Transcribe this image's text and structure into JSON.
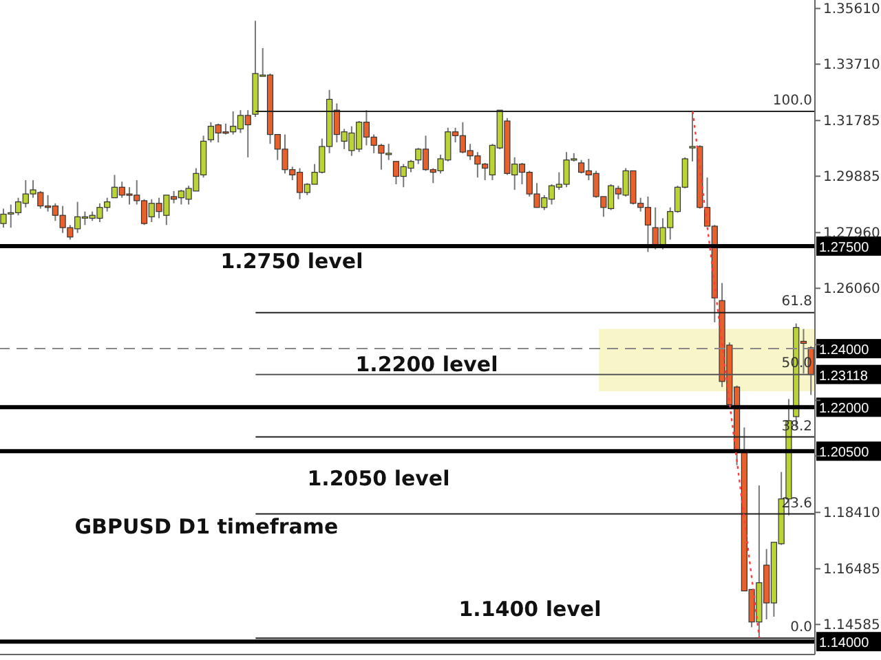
{
  "chart_data": {
    "type": "candlestick",
    "categories": [
      null,
      null,
      null,
      null,
      null,
      null,
      null,
      null,
      null,
      null,
      null,
      null,
      null,
      null,
      null,
      null,
      null,
      null,
      null,
      null,
      null,
      null,
      null,
      null,
      null,
      null,
      null,
      null,
      null,
      null,
      null,
      null,
      null,
      null,
      null,
      null,
      null,
      null,
      null,
      null,
      null,
      null,
      null,
      null,
      null,
      null,
      null,
      null,
      null,
      null,
      null,
      null,
      null,
      null,
      null,
      null,
      null,
      null,
      null,
      null,
      null,
      null,
      null,
      null,
      null,
      null,
      null,
      null,
      null,
      null,
      null,
      null,
      null,
      null,
      null,
      null,
      null,
      null,
      null,
      null,
      null,
      null,
      null,
      null,
      null,
      null,
      null,
      null,
      null,
      null,
      null,
      null,
      null,
      null,
      null,
      null,
      null,
      null,
      null,
      null,
      null,
      null,
      null,
      null,
      null,
      null,
      null,
      null,
      null,
      null
    ],
    "ohlc": [
      [
        1.2827,
        1.2878,
        1.2813,
        1.2859
      ],
      [
        1.2864,
        1.2892,
        1.2813,
        1.2864
      ],
      [
        1.2864,
        1.2915,
        1.2855,
        1.2901
      ],
      [
        1.2896,
        1.2975,
        1.2882,
        1.2928
      ],
      [
        1.2928,
        1.2975,
        1.2915,
        1.2942
      ],
      [
        1.2933,
        1.2938,
        1.2878,
        1.2887
      ],
      [
        1.2887,
        1.2924,
        1.2868,
        1.2882
      ],
      [
        1.2887,
        1.2896,
        1.2836,
        1.2855
      ],
      [
        1.2855,
        1.2887,
        1.2795,
        1.2813
      ],
      [
        1.2813,
        1.2822,
        1.2772,
        1.2781
      ],
      [
        1.2809,
        1.2901,
        1.2795,
        1.285
      ],
      [
        1.285,
        1.2868,
        1.2822,
        1.285
      ],
      [
        1.2845,
        1.2868,
        1.2836,
        1.2855
      ],
      [
        1.2845,
        1.2896,
        1.2832,
        1.2882
      ],
      [
        1.2882,
        1.2915,
        1.2868,
        1.2901
      ],
      [
        1.2915,
        1.2993,
        1.2915,
        1.2951
      ],
      [
        1.2951,
        1.297,
        1.2915,
        1.2924
      ],
      [
        1.2928,
        1.2951,
        1.2892,
        1.2924
      ],
      [
        1.2924,
        1.2975,
        1.2892,
        1.2905
      ],
      [
        1.2905,
        1.291,
        1.2822,
        1.2827
      ],
      [
        1.285,
        1.291,
        1.2832,
        1.2896
      ],
      [
        1.2896,
        1.2915,
        1.2845,
        1.2868
      ],
      [
        1.2855,
        1.2924,
        1.2822,
        1.2924
      ],
      [
        1.2919,
        1.2938,
        1.2896,
        1.291
      ],
      [
        1.2915,
        1.2942,
        1.2892,
        1.2938
      ],
      [
        1.291,
        1.2956,
        1.2892,
        1.2947
      ],
      [
        1.2938,
        1.3016,
        1.2938,
        1.2998
      ],
      [
        1.2993,
        1.3127,
        1.2984,
        1.3108
      ],
      [
        1.3113,
        1.3173,
        1.3104,
        1.3159
      ],
      [
        1.3164,
        1.3168,
        1.3104,
        1.3136
      ],
      [
        1.314,
        1.3168,
        1.3131,
        1.3136
      ],
      [
        1.314,
        1.321,
        1.3131,
        1.3159
      ],
      [
        1.315,
        1.3214,
        1.3136,
        1.3196
      ],
      [
        1.3196,
        1.3214,
        1.3053,
        1.3164
      ],
      [
        1.32,
        1.3519,
        1.3191,
        1.3339
      ],
      [
        1.3334,
        1.3426,
        1.333,
        1.3334
      ],
      [
        1.3334,
        1.3339,
        1.3099,
        1.3131
      ],
      [
        1.3131,
        1.3131,
        1.3044,
        1.3081
      ],
      [
        1.3081,
        1.3131,
        1.2998,
        1.3011
      ],
      [
        1.3011,
        1.3021,
        1.2975,
        1.2993
      ],
      [
        1.3002,
        1.3016,
        1.291,
        1.2933
      ],
      [
        1.2933,
        1.2965,
        1.2924,
        1.2961
      ],
      [
        1.2961,
        1.303,
        1.2961,
        1.3002
      ],
      [
        1.3002,
        1.3117,
        1.2998,
        1.309
      ],
      [
        1.309,
        1.3283,
        1.3067,
        1.3251
      ],
      [
        1.3214,
        1.3237,
        1.3104,
        1.3131
      ],
      [
        1.3108,
        1.315,
        1.3081,
        1.314
      ],
      [
        1.3076,
        1.3159,
        1.3058,
        1.3136
      ],
      [
        1.3081,
        1.3177,
        1.3071,
        1.3173
      ],
      [
        1.3173,
        1.3214,
        1.3094,
        1.3122
      ],
      [
        1.3122,
        1.3131,
        1.3067,
        1.3094
      ],
      [
        1.3094,
        1.3099,
        1.3011,
        1.3067
      ],
      [
        1.3067,
        1.3099,
        1.3044,
        1.3067
      ],
      [
        1.3039,
        1.3039,
        1.2961,
        1.2988
      ],
      [
        1.2988,
        1.303,
        1.2951,
        1.3021
      ],
      [
        1.3016,
        1.3044,
        1.3002,
        1.3039
      ],
      [
        1.3044,
        1.3085,
        1.303,
        1.3081
      ],
      [
        1.3081,
        1.3127,
        1.3007,
        1.3011
      ],
      [
        1.3011,
        1.3016,
        1.2965,
        1.3002
      ],
      [
        1.3007,
        1.3062,
        1.2998,
        1.3048
      ],
      [
        1.3044,
        1.3154,
        1.3039,
        1.314
      ],
      [
        1.314,
        1.3154,
        1.3104,
        1.3127
      ],
      [
        1.3127,
        1.3173,
        1.3067,
        1.3071
      ],
      [
        1.3076,
        1.3099,
        1.3044,
        1.3058
      ],
      [
        1.3058,
        1.3071,
        1.2984,
        1.303
      ],
      [
        1.303,
        1.3034,
        1.2975,
        1.3016
      ],
      [
        1.2993,
        1.3099,
        1.2975,
        1.3094
      ],
      [
        1.3085,
        1.3214,
        1.3081,
        1.3214
      ],
      [
        1.3177,
        1.3187,
        1.2993,
        1.2998
      ],
      [
        1.2993,
        1.3053,
        1.2942,
        1.303
      ],
      [
        1.303,
        1.3034,
        1.2961,
        1.3002
      ],
      [
        1.3002,
        1.3007,
        1.2919,
        1.2928
      ],
      [
        1.2928,
        1.2965,
        1.2882,
        1.2882
      ],
      [
        1.2882,
        1.2924,
        1.2873,
        1.2915
      ],
      [
        1.291,
        1.2961,
        1.2892,
        1.2956
      ],
      [
        1.2951,
        1.3002,
        1.2942,
        1.2961
      ],
      [
        1.2961,
        1.3071,
        1.2951,
        1.3044
      ],
      [
        1.3044,
        1.3067,
        1.3039,
        1.3048
      ],
      [
        1.3034,
        1.3044,
        1.2998,
        1.3002
      ],
      [
        1.3007,
        1.3048,
        1.2975,
        1.2993
      ],
      [
        1.2998,
        1.3007,
        1.2915,
        1.2919
      ],
      [
        1.2919,
        1.2919,
        1.285,
        1.2882
      ],
      [
        1.2878,
        1.2961,
        1.2873,
        1.2956
      ],
      [
        1.2947,
        1.2956,
        1.291,
        1.2928
      ],
      [
        1.2924,
        1.3016,
        1.2919,
        1.3007
      ],
      [
        1.3007,
        1.3007,
        1.2892,
        1.2896
      ],
      [
        1.2896,
        1.2915,
        1.2868,
        1.2882
      ],
      [
        1.2882,
        1.2919,
        1.273,
        1.2822
      ],
      [
        1.2813,
        1.2882,
        1.2739,
        1.2749
      ],
      [
        1.2749,
        1.2845,
        1.2739,
        1.2813
      ],
      [
        1.2813,
        1.2882,
        1.2772,
        1.2868
      ],
      [
        1.2868,
        1.2956,
        1.2864,
        1.2951
      ],
      [
        1.2951,
        1.3053,
        1.2947,
        1.3048
      ],
      [
        1.3085,
        1.321,
        1.3039,
        1.309
      ],
      [
        1.309,
        1.3094,
        1.2878,
        1.2882
      ],
      [
        1.2882,
        1.2984,
        1.2818,
        1.2818
      ],
      [
        1.2818,
        1.2822,
        1.249,
        1.2573
      ],
      [
        1.2564,
        1.2624,
        1.2269,
        1.2288
      ],
      [
        1.2412,
        1.2421,
        1.2209,
        1.2209
      ],
      [
        1.2269,
        1.2274,
        1.2002,
        1.2053
      ],
      [
        1.2053,
        1.2131,
        1.1573,
        1.1573
      ],
      [
        1.1578,
        1.1578,
        1.1449,
        1.1467
      ],
      [
        1.1467,
        1.1933,
        1.1412,
        1.1601
      ],
      [
        1.1661,
        1.1716,
        1.1476,
        1.1532
      ],
      [
        1.1532,
        1.1739,
        1.1485,
        1.1739
      ],
      [
        1.1734,
        1.1979,
        1.173,
        1.1887
      ],
      [
        1.1887,
        1.2228,
        1.1831,
        1.2154
      ],
      [
        1.2168,
        1.2486,
        1.2131,
        1.2472
      ],
      [
        1.2425,
        1.2467,
        1.2315,
        1.2418
      ],
      [
        1.2403,
        1.2408,
        1.2242,
        1.2312
      ]
    ],
    "colors": [
      "#bcd335",
      "#bcd335",
      "#bcd335",
      "#bcd335",
      "#bcd335",
      "#e8602c",
      "#e8602c",
      "#e8602c",
      "#e8602c",
      "#e8602c",
      "#bcd335",
      "#bcd335",
      "#bcd335",
      "#bcd335",
      "#bcd335",
      "#bcd335",
      "#e8602c",
      "#e8602c",
      "#e8602c",
      "#e8602c",
      "#bcd335",
      "#e8602c",
      "#bcd335",
      "#e8602c",
      "#bcd335",
      "#bcd335",
      "#bcd335",
      "#bcd335",
      "#bcd335",
      "#e8602c",
      "#e8602c",
      "#bcd335",
      "#bcd335",
      "#e8602c",
      "#bcd335",
      "#bcd335",
      "#e8602c",
      "#e8602c",
      "#e8602c",
      "#e8602c",
      "#e8602c",
      "#bcd335",
      "#bcd335",
      "#bcd335",
      "#bcd335",
      "#e8602c",
      "#bcd335",
      "#bcd335",
      "#bcd335",
      "#e8602c",
      "#e8602c",
      "#e8602c",
      "#bcd335",
      "#e8602c",
      "#bcd335",
      "#bcd335",
      "#bcd335",
      "#e8602c",
      "#e8602c",
      "#bcd335",
      "#bcd335",
      "#e8602c",
      "#e8602c",
      "#e8602c",
      "#e8602c",
      "#e8602c",
      "#bcd335",
      "#bcd335",
      "#e8602c",
      "#bcd335",
      "#e8602c",
      "#e8602c",
      "#e8602c",
      "#bcd335",
      "#bcd335",
      "#bcd335",
      "#bcd335",
      "#bcd335",
      "#e8602c",
      "#e8602c",
      "#e8602c",
      "#e8602c",
      "#bcd335",
      "#e8602c",
      "#bcd335",
      "#e8602c",
      "#e8602c",
      "#e8602c",
      "#e8602c",
      "#bcd335",
      "#bcd335",
      "#bcd335",
      "#bcd335",
      "#bcd335",
      "#e8602c",
      "#e8602c",
      "#e8602c",
      "#e8602c",
      "#e8602c",
      "#e8602c",
      "#e8602c",
      "#e8602c",
      "#bcd335",
      "#e8602c",
      "#bcd335",
      "#bcd335",
      "#bcd335",
      "#bcd335",
      "#e8602c",
      "#e8602c"
    ],
    "series": [
      {
        "type": "line",
        "color": "#ff3b3b",
        "line_style": "dotted",
        "values": [
          null,
          null,
          null,
          null,
          null,
          null,
          null,
          null,
          null,
          null,
          null,
          null,
          null,
          null,
          null,
          null,
          null,
          null,
          null,
          null,
          null,
          null,
          null,
          null,
          null,
          null,
          null,
          null,
          null,
          null,
          null,
          null,
          null,
          null,
          null,
          null,
          null,
          null,
          null,
          null,
          null,
          null,
          null,
          null,
          null,
          null,
          null,
          null,
          null,
          null,
          null,
          null,
          null,
          null,
          null,
          null,
          null,
          null,
          null,
          null,
          null,
          null,
          null,
          null,
          null,
          null,
          null,
          null,
          null,
          null,
          null,
          null,
          null,
          null,
          null,
          null,
          null,
          null,
          null,
          null,
          null,
          null,
          null,
          null,
          null,
          null,
          null,
          null,
          null,
          null,
          null,
          null,
          null,
          1.321,
          null,
          null,
          null,
          null,
          null,
          null,
          null,
          null,
          1.1412,
          null,
          null,
          null,
          null,
          null,
          null,
          null
        ]
      }
    ],
    "ylim": [
      1.1356,
      1.359
    ],
    "yticks": [
      {
        "value": 1.3561,
        "label": "1.35610"
      },
      {
        "value": 1.3371,
        "label": "1.33710"
      },
      {
        "value": 1.31785,
        "label": "1.31785"
      },
      {
        "value": 1.29885,
        "label": "1.29885"
      },
      {
        "value": 1.2796,
        "label": "1.27960"
      },
      {
        "value": 1.2606,
        "label": "1.26060"
      },
      {
        "value": 1.24135,
        "label": null
      },
      {
        "value": 1.22235,
        "label": null
      },
      {
        "value": 1.20335,
        "label": null
      },
      {
        "value": 1.1841,
        "label": "1.18410"
      },
      {
        "value": 1.16485,
        "label": "1.16485"
      },
      {
        "value": 1.14585,
        "label": "1.14585"
      }
    ],
    "tick_labels": "y",
    "bands": [
      {
        "axis": "y",
        "from": 1.2255,
        "to": 1.2467,
        "color": "#f8f6c8"
      }
    ],
    "ref_lines": [
      {
        "axis": "y",
        "value": 1.321,
        "color": "#222222"
      },
      {
        "axis": "y",
        "value": 1.2523,
        "color": "#222222"
      },
      {
        "axis": "y",
        "value": 1.2099,
        "color": "#222222"
      },
      {
        "axis": "y",
        "value": 1.1836,
        "color": "#222222"
      },
      {
        "axis": "y",
        "value": 1.1412,
        "color": "#222222"
      },
      {
        "axis": "y",
        "value": 1.275,
        "label": "1.27500",
        "color": "#000000"
      },
      {
        "axis": "y",
        "value": 1.24,
        "label": "1.24000",
        "color": "#888888",
        "line_style": "dashed"
      },
      {
        "axis": "y",
        "value": 1.23118,
        "label": "1.23118",
        "color": "#555555"
      },
      {
        "axis": "y",
        "value": 1.22,
        "label": "1.22000",
        "color": "#000000"
      },
      {
        "axis": "y",
        "value": 1.205,
        "label": "1.20500",
        "color": "#000000"
      },
      {
        "axis": "y",
        "value": 1.14,
        "label": "1.14000",
        "color": "#000000"
      }
    ],
    "annotations": [
      "1.2750 level",
      "1.2200 level",
      "1.2050 level",
      "GBPUSD D1 timeframe",
      "1.1400 level",
      {
        "text": "100.0",
        "y": 1.321
      },
      {
        "text": "61.8",
        "y": 1.2523
      },
      {
        "text": "50.0",
        "y": 1.23118
      },
      {
        "text": "38.2",
        "y": 1.2099
      },
      {
        "text": "23.6",
        "y": 1.1836
      },
      {
        "text": "0.0",
        "y": 1.1412
      }
    ]
  }
}
